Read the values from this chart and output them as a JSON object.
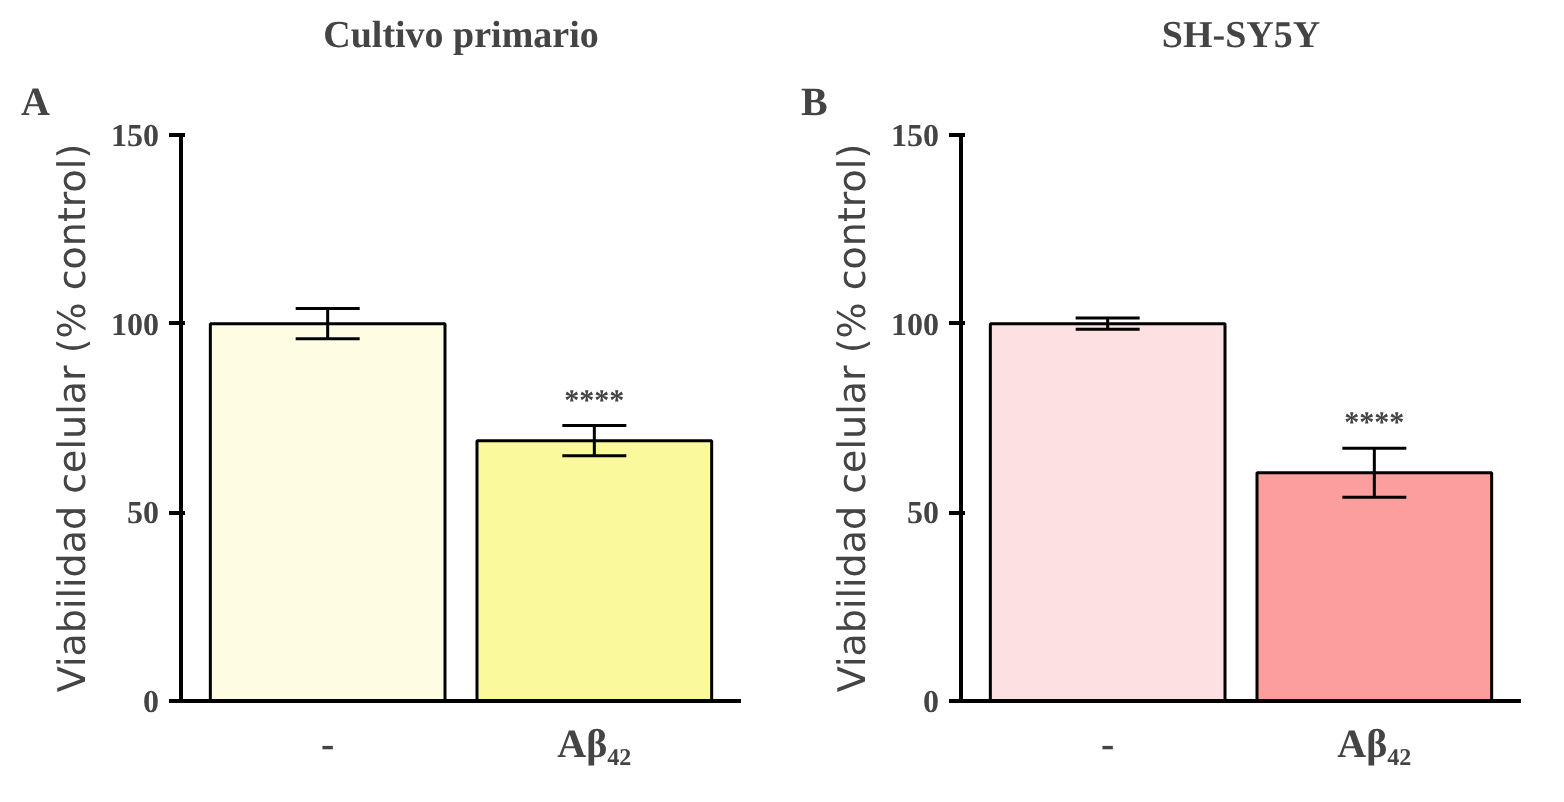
{
  "chart_data": [
    {
      "type": "bar",
      "title": "Cultivo primario",
      "ylabel": "Viabilidad celular (% control)",
      "categories": [
        "-",
        "Aβ₄₂"
      ],
      "values": [
        100,
        69
      ],
      "colors": [
        "#fefde4",
        "#fafa9c"
      ],
      "errors": [
        4,
        4
      ],
      "ylim": [
        0,
        150
      ],
      "yticks": [
        0,
        50,
        100,
        150
      ],
      "grid": false,
      "annotations": [
        "A",
        "****"
      ]
    },
    {
      "type": "bar",
      "title": "SH-SY5Y",
      "ylabel": "Viabilidad celular (% control)",
      "categories": [
        "-",
        "Aβ₄₂"
      ],
      "values": [
        100,
        60.5
      ],
      "colors": [
        "#fde0e2",
        "#fc9e9e"
      ],
      "errors": [
        1.5,
        6.5
      ],
      "ylim": [
        0,
        150
      ],
      "yticks": [
        0,
        50,
        100,
        150
      ],
      "grid": false,
      "annotations": [
        "B",
        "****"
      ]
    }
  ]
}
